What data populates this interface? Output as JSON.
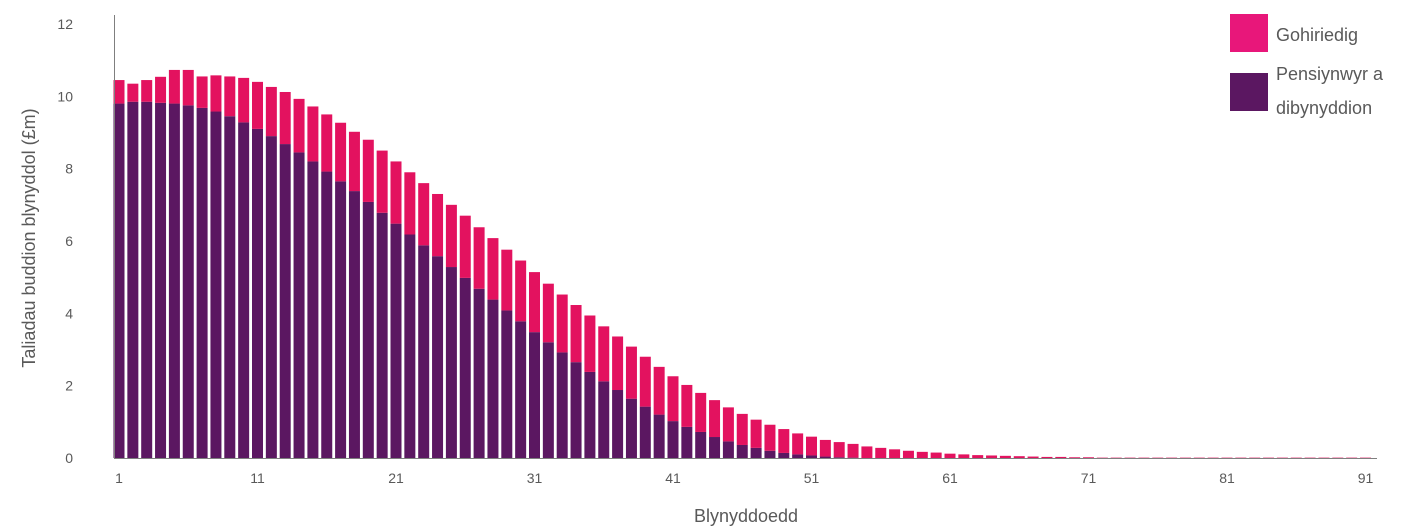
{
  "colors": {
    "deferred": "#e3125f",
    "pensioners": "#5b1761",
    "legend_deferred": "#e8177a",
    "axis": "#7f7f7f",
    "text": "#595959"
  },
  "chart_data": {
    "type": "bar",
    "stacked": true,
    "title": "",
    "xlabel": "Blynyddoedd",
    "ylabel": "Taliadau buddion blynyddol (£m)",
    "ylim": [
      0,
      12
    ],
    "yticks": [
      0,
      2,
      4,
      6,
      8,
      10,
      12
    ],
    "xticks": [
      1,
      11,
      21,
      31,
      41,
      51,
      61,
      71,
      81,
      91
    ],
    "grid": false,
    "legend_position": "top-right",
    "x": [
      1,
      2,
      3,
      4,
      5,
      6,
      7,
      8,
      9,
      10,
      11,
      12,
      13,
      14,
      15,
      16,
      17,
      18,
      19,
      20,
      21,
      22,
      23,
      24,
      25,
      26,
      27,
      28,
      29,
      30,
      31,
      32,
      33,
      34,
      35,
      36,
      37,
      38,
      39,
      40,
      41,
      42,
      43,
      44,
      45,
      46,
      47,
      48,
      49,
      50,
      51,
      52,
      53,
      54,
      55,
      56,
      57,
      58,
      59,
      60,
      61,
      62,
      63,
      64,
      65,
      66,
      67,
      68,
      69,
      70,
      71,
      72,
      73,
      74,
      75,
      76,
      77,
      78,
      79,
      80,
      81,
      82,
      83,
      84,
      85,
      86,
      87,
      88,
      89,
      90,
      91
    ],
    "series": [
      {
        "name": "Pensiynwyr a dibynyddion",
        "color_key": "pensioners",
        "values": [
          9.8,
          9.85,
          9.85,
          9.82,
          9.8,
          9.75,
          9.68,
          9.58,
          9.45,
          9.28,
          9.1,
          8.9,
          8.68,
          8.45,
          8.2,
          7.92,
          7.65,
          7.38,
          7.08,
          6.78,
          6.48,
          6.18,
          5.88,
          5.58,
          5.28,
          4.98,
          4.68,
          4.38,
          4.08,
          3.78,
          3.48,
          3.2,
          2.92,
          2.65,
          2.38,
          2.12,
          1.88,
          1.64,
          1.42,
          1.2,
          1.02,
          0.86,
          0.72,
          0.58,
          0.46,
          0.36,
          0.28,
          0.2,
          0.14,
          0.1,
          0.07,
          0.04,
          0.02,
          0.01,
          0,
          0,
          0,
          0,
          0,
          0,
          0,
          0,
          0,
          0,
          0,
          0,
          0,
          0,
          0,
          0,
          0,
          0,
          0,
          0,
          0,
          0,
          0,
          0,
          0,
          0,
          0,
          0,
          0,
          0,
          0,
          0,
          0,
          0,
          0,
          0,
          0
        ]
      },
      {
        "name": "Gohiriedig",
        "color_key": "deferred",
        "values": [
          0.65,
          0.5,
          0.6,
          0.72,
          0.93,
          0.98,
          0.87,
          1.0,
          1.1,
          1.23,
          1.3,
          1.36,
          1.44,
          1.48,
          1.52,
          1.58,
          1.62,
          1.64,
          1.72,
          1.72,
          1.72,
          1.72,
          1.72,
          1.72,
          1.72,
          1.72,
          1.7,
          1.7,
          1.68,
          1.68,
          1.66,
          1.62,
          1.6,
          1.58,
          1.56,
          1.52,
          1.48,
          1.44,
          1.38,
          1.32,
          1.24,
          1.16,
          1.08,
          1.02,
          0.94,
          0.86,
          0.78,
          0.72,
          0.66,
          0.58,
          0.52,
          0.46,
          0.42,
          0.38,
          0.32,
          0.28,
          0.24,
          0.2,
          0.17,
          0.15,
          0.12,
          0.1,
          0.08,
          0.07,
          0.06,
          0.05,
          0.04,
          0.03,
          0.03,
          0.02,
          0.02,
          0.01,
          0.01,
          0.01,
          0.01,
          0.01,
          0.01,
          0.01,
          0.01,
          0.01,
          0.01,
          0.01,
          0.01,
          0.01,
          0.01,
          0.01,
          0.01,
          0.01,
          0.01,
          0.01,
          0.01
        ]
      }
    ]
  },
  "legend": {
    "items": [
      {
        "label": "Gohiriedig",
        "color_key": "legend_deferred"
      },
      {
        "label_line1": "Pensiynwyr a",
        "label_line2": "dibynyddion",
        "color_key": "pensioners"
      }
    ]
  }
}
